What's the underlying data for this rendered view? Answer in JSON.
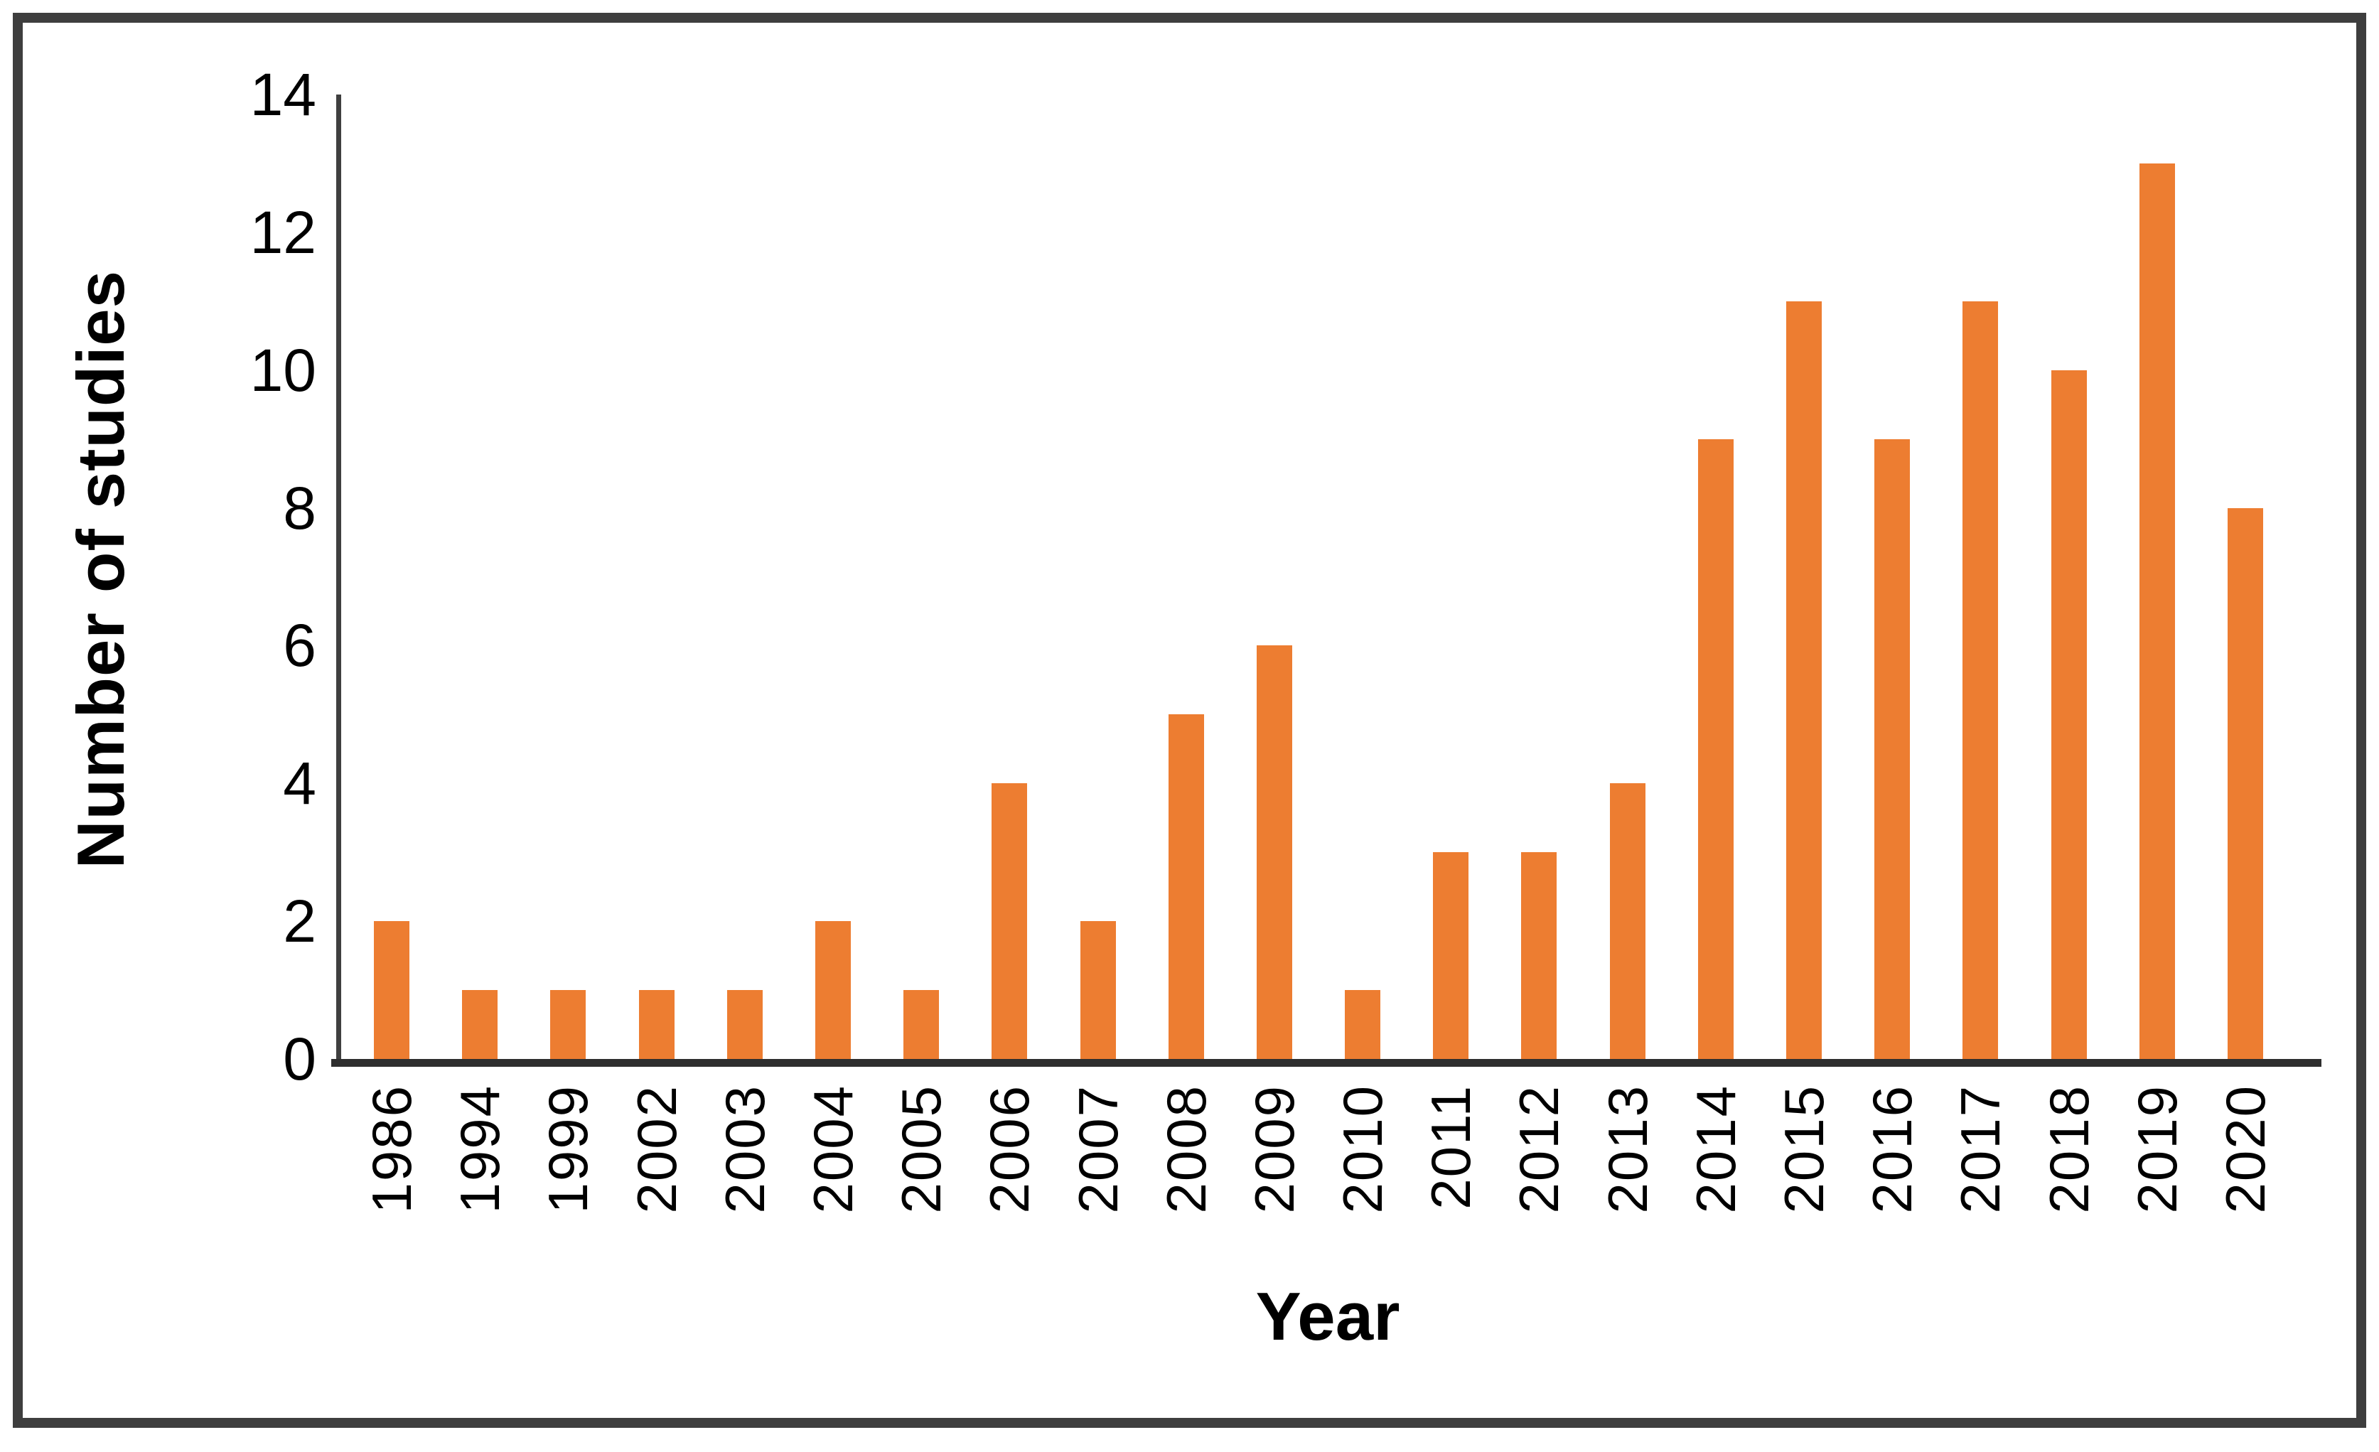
{
  "chart_data": {
    "type": "bar",
    "title": "",
    "categories": [
      "1986",
      "1994",
      "1999",
      "2002",
      "2003",
      "2004",
      "2005",
      "2006",
      "2007",
      "2008",
      "2009",
      "2010",
      "2011",
      "2012",
      "2013",
      "2014",
      "2015",
      "2016",
      "2017",
      "2018",
      "2019",
      "2020"
    ],
    "values": [
      2,
      1,
      1,
      1,
      1,
      2,
      1,
      4,
      2,
      5,
      6,
      1,
      3,
      3,
      4,
      9,
      11,
      9,
      11,
      10,
      13,
      8
    ],
    "xlabel": "Year",
    "ylabel": "Number of studies",
    "ylim": [
      0,
      14
    ],
    "ytick_step": 2,
    "yticks": [
      0,
      2,
      4,
      6,
      8,
      10,
      12,
      14
    ],
    "grid": false,
    "legend_position": "none",
    "bar_color": "#ED7D31",
    "axis_color": "#3F3F3F",
    "baseline_color": "#2E2E2E",
    "frame_border_color": "#3E3E3E",
    "text_color": "#000000"
  }
}
